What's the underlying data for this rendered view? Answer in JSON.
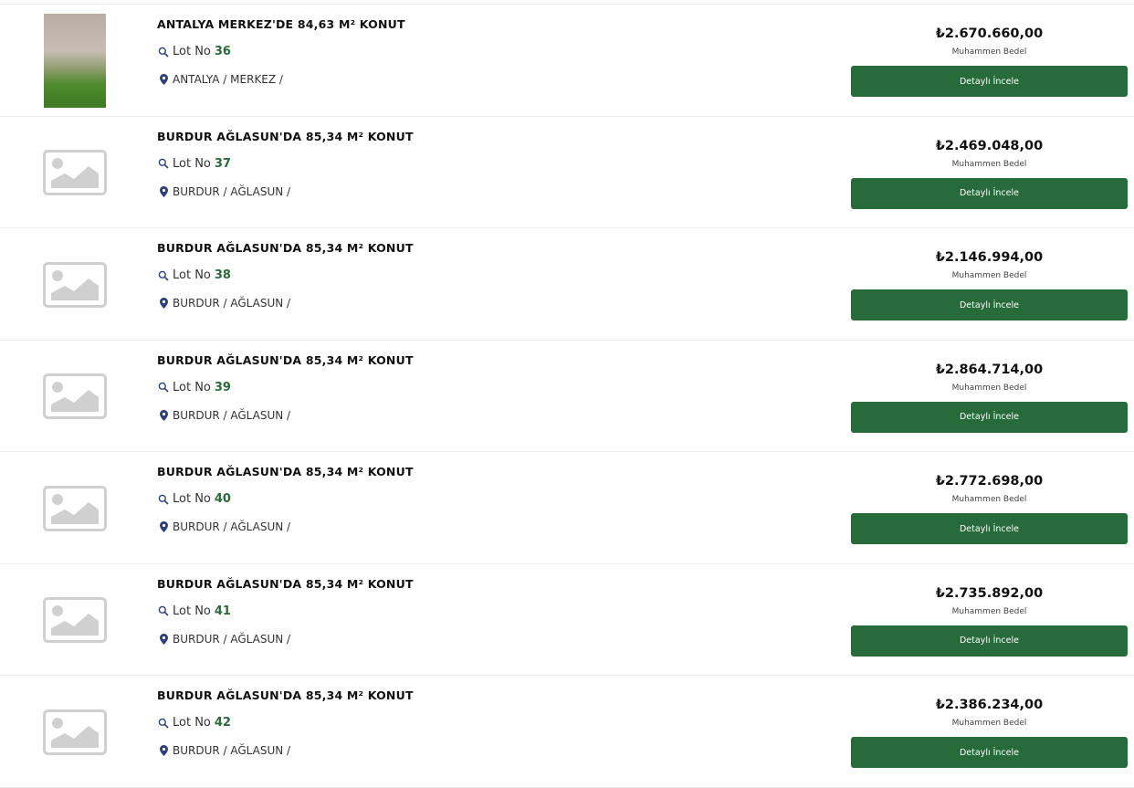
{
  "colors": {
    "accent": "#276b3a",
    "lot_number": "#2a6b3a",
    "location_icon": "#2b3f7a"
  },
  "price_label": "Muhammen Bedel",
  "button_label": "Detaylı İncele",
  "lot_prefix": "Lot No",
  "listings": [
    {
      "title": "ANTALYA MERKEZ'DE 84,63 M² KONUT",
      "lot": "36",
      "location": "ANTALYA / MERKEZ /",
      "price": "₺2.670.660,00",
      "has_photo": true
    },
    {
      "title": "BURDUR AĞLASUN'DA 85,34 M² KONUT",
      "lot": "37",
      "location": "BURDUR / AĞLASUN /",
      "price": "₺2.469.048,00",
      "has_photo": false
    },
    {
      "title": "BURDUR AĞLASUN'DA 85,34 M² KONUT",
      "lot": "38",
      "location": "BURDUR / AĞLASUN /",
      "price": "₺2.146.994,00",
      "has_photo": false
    },
    {
      "title": "BURDUR AĞLASUN'DA 85,34 M² KONUT",
      "lot": "39",
      "location": "BURDUR / AĞLASUN /",
      "price": "₺2.864.714,00",
      "has_photo": false
    },
    {
      "title": "BURDUR AĞLASUN'DA 85,34 M² KONUT",
      "lot": "40",
      "location": "BURDUR / AĞLASUN /",
      "price": "₺2.772.698,00",
      "has_photo": false
    },
    {
      "title": "BURDUR AĞLASUN'DA 85,34 M² KONUT",
      "lot": "41",
      "location": "BURDUR / AĞLASUN /",
      "price": "₺2.735.892,00",
      "has_photo": false
    },
    {
      "title": "BURDUR AĞLASUN'DA 85,34 M² KONUT",
      "lot": "42",
      "location": "BURDUR / AĞLASUN /",
      "price": "₺2.386.234,00",
      "has_photo": false
    }
  ]
}
